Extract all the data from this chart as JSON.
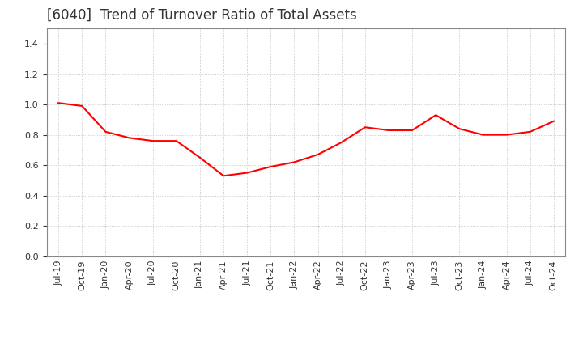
{
  "title": "[6040]  Trend of Turnover Ratio of Total Assets",
  "line_color": "#FF0000",
  "background_color": "#FFFFFF",
  "grid_color": "#BBBBBB",
  "title_color": "#333333",
  "ylim": [
    0.0,
    1.5
  ],
  "yticks": [
    0.0,
    0.2,
    0.4,
    0.6,
    0.8,
    1.0,
    1.2,
    1.4
  ],
  "x_labels": [
    "Jul-19",
    "Oct-19",
    "Jan-20",
    "Apr-20",
    "Jul-20",
    "Oct-20",
    "Jan-21",
    "Apr-21",
    "Jul-21",
    "Oct-21",
    "Jan-22",
    "Apr-22",
    "Jul-22",
    "Oct-22",
    "Jan-23",
    "Apr-23",
    "Jul-23",
    "Oct-23",
    "Jan-24",
    "Apr-24",
    "Jul-24",
    "Oct-24"
  ],
  "values": [
    1.01,
    0.99,
    0.82,
    0.78,
    0.76,
    0.76,
    0.65,
    0.53,
    0.55,
    0.59,
    0.62,
    0.67,
    0.75,
    0.85,
    0.83,
    0.83,
    0.93,
    0.84,
    0.8,
    0.8,
    0.82,
    0.89
  ],
  "title_fontsize": 12,
  "tick_fontsize": 8,
  "line_width": 1.5
}
